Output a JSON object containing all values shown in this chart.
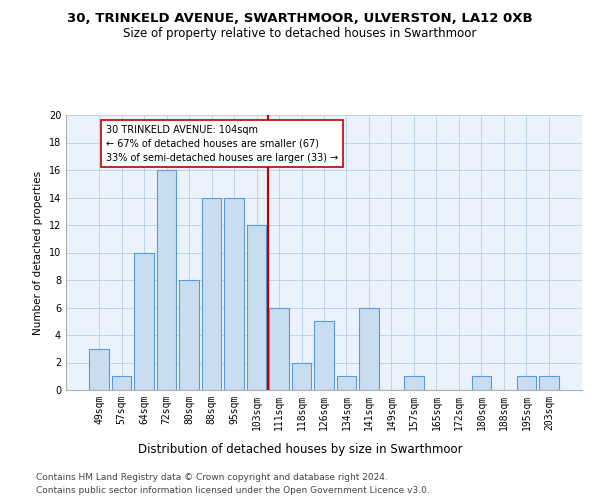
{
  "title1": "30, TRINKELD AVENUE, SWARTHMOOR, ULVERSTON, LA12 0XB",
  "title2": "Size of property relative to detached houses in Swarthmoor",
  "xlabel": "Distribution of detached houses by size in Swarthmoor",
  "ylabel": "Number of detached properties",
  "categories": [
    "49sqm",
    "57sqm",
    "64sqm",
    "72sqm",
    "80sqm",
    "88sqm",
    "95sqm",
    "103sqm",
    "111sqm",
    "118sqm",
    "126sqm",
    "134sqm",
    "141sqm",
    "149sqm",
    "157sqm",
    "165sqm",
    "172sqm",
    "180sqm",
    "188sqm",
    "195sqm",
    "203sqm"
  ],
  "values": [
    3,
    1,
    10,
    16,
    8,
    14,
    14,
    12,
    6,
    2,
    5,
    1,
    6,
    0,
    1,
    0,
    0,
    1,
    0,
    1,
    1
  ],
  "bar_color": "#c9ddf0",
  "bar_edge_color": "#5b9bd5",
  "marker_index": 7,
  "annotation_line1": "30 TRINKELD AVENUE: 104sqm",
  "annotation_line2": "← 67% of detached houses are smaller (67)",
  "annotation_line3": "33% of semi-detached houses are larger (33) →",
  "marker_color": "#c00000",
  "ylim": [
    0,
    20
  ],
  "yticks": [
    0,
    2,
    4,
    6,
    8,
    10,
    12,
    14,
    16,
    18,
    20
  ],
  "footer1": "Contains HM Land Registry data © Crown copyright and database right 2024.",
  "footer2": "Contains public sector information licensed under the Open Government Licence v3.0.",
  "bg_color": "#ffffff",
  "plot_bg_color": "#eaf2fb",
  "grid_color": "#b8cfe4",
  "title1_fontsize": 9.5,
  "title2_fontsize": 8.5,
  "xlabel_fontsize": 8.5,
  "ylabel_fontsize": 7.5,
  "tick_fontsize": 7,
  "annot_fontsize": 7,
  "footer_fontsize": 6.5
}
